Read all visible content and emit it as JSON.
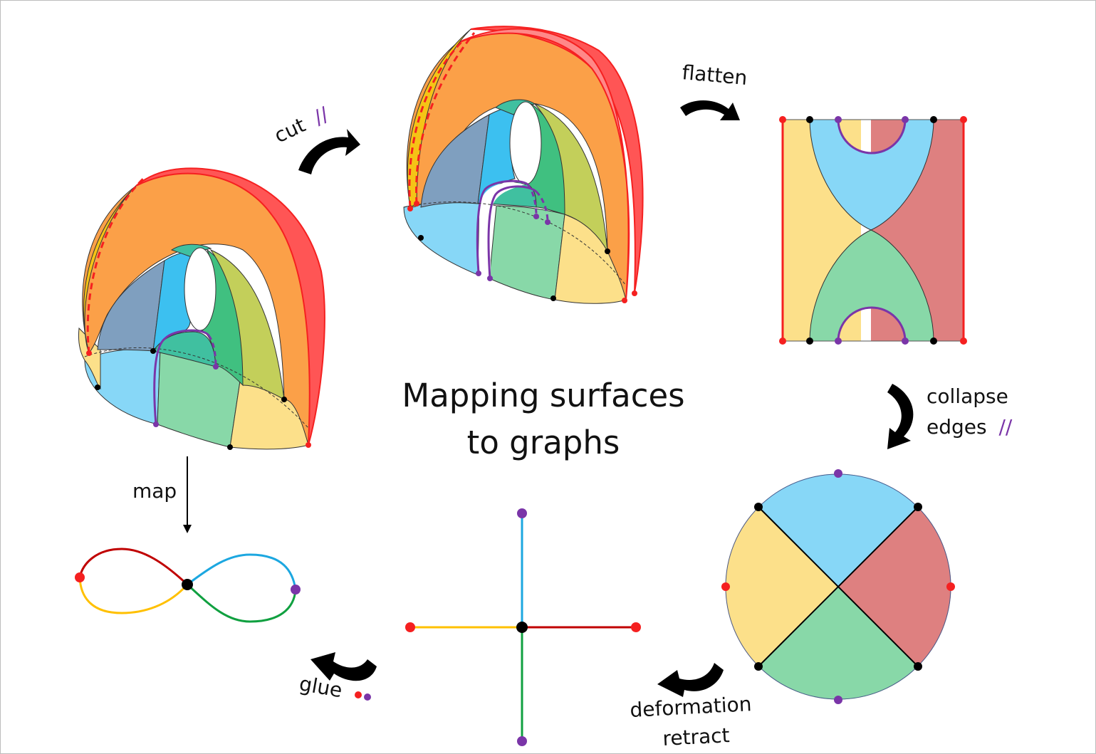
{
  "title": {
    "line1": "Mapping surfaces",
    "line2": "to graphs"
  },
  "labels": {
    "cut": "cut",
    "cut_marks": "//",
    "flatten": "flatten",
    "collapse": "collapse",
    "edges": "edges",
    "edges_marks": "//",
    "deformation": "deformation",
    "retract": "retract",
    "glue": "glue",
    "map": "map"
  },
  "colors": {
    "yellow": "#FCE08A",
    "yellow_line": "#F5C316",
    "orange": "#FBA048",
    "red": "#F52020",
    "red_fill": "#DE8080",
    "red_strip": "#FF5555",
    "slate": "#7F9FBF",
    "cyan": "#3CC0F0",
    "light_blue": "#87D7F7",
    "green": "#40C080",
    "light_green": "#88D8A8",
    "teal": "#40C0A0",
    "olive": "#C3CF5A",
    "purple": "#7A35A8",
    "graph_red": "#C00000",
    "graph_blue": "#1CA7E0",
    "graph_yellow": "#FFC000",
    "graph_green": "#10A040",
    "black": "#000000"
  }
}
